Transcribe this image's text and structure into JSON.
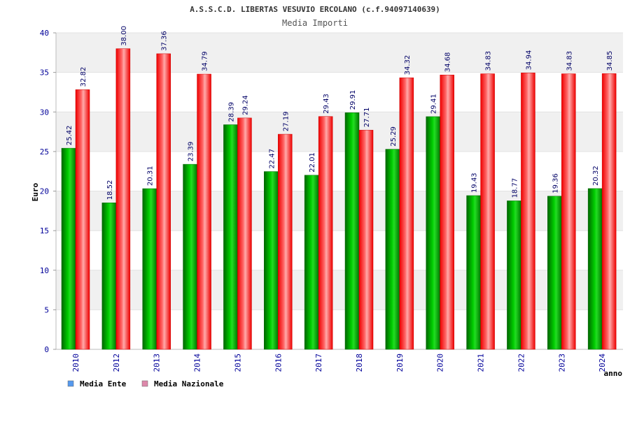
{
  "chart_data": {
    "type": "bar",
    "title": "A.S.S.C.D. LIBERTAS VESUVIO ERCOLANO (c.f.94097140639)",
    "subtitle": "Media Importi",
    "ylabel": "Euro",
    "xlabel": "anno",
    "ylim": [
      0,
      40
    ],
    "yticks": [
      0,
      5,
      10,
      15,
      20,
      25,
      30,
      35,
      40
    ],
    "ytick_labels": [
      "0",
      "5",
      "10",
      "15",
      "20",
      "25",
      "30",
      "35",
      "40"
    ],
    "categories": [
      "2010",
      "2012",
      "2013",
      "2014",
      "2015",
      "2016",
      "2017",
      "2018",
      "2019",
      "2020",
      "2021",
      "2022",
      "2023",
      "2024"
    ],
    "series": [
      {
        "name": "Media Ente",
        "color": "#00bb00",
        "legend_color": "#5599ee",
        "values": [
          25.42,
          18.52,
          20.31,
          23.39,
          28.39,
          22.47,
          22.01,
          29.91,
          25.29,
          29.41,
          19.43,
          18.77,
          19.36,
          20.32
        ],
        "labels": [
          "25.42",
          "18.52",
          "20.31",
          "23.39",
          "28.39",
          "22.47",
          "22.01",
          "29.91",
          "25.29",
          "29.41",
          "19.43",
          "18.77",
          "19.36",
          "20.32"
        ]
      },
      {
        "name": "Media Nazionale",
        "color": "#ee1111",
        "legend_color": "#dd88aa",
        "values": [
          32.82,
          38.0,
          37.36,
          34.79,
          29.24,
          27.19,
          29.43,
          27.71,
          34.32,
          34.68,
          34.83,
          34.94,
          34.83,
          34.85
        ],
        "labels": [
          "32.82",
          "38.00",
          "37.36",
          "34.79",
          "29.24",
          "27.19",
          "29.43",
          "27.71",
          "34.32",
          "34.68",
          "34.83",
          "34.94",
          "34.83",
          "34.85"
        ]
      }
    ],
    "grid": true,
    "legend_position": "bottom-left"
  }
}
